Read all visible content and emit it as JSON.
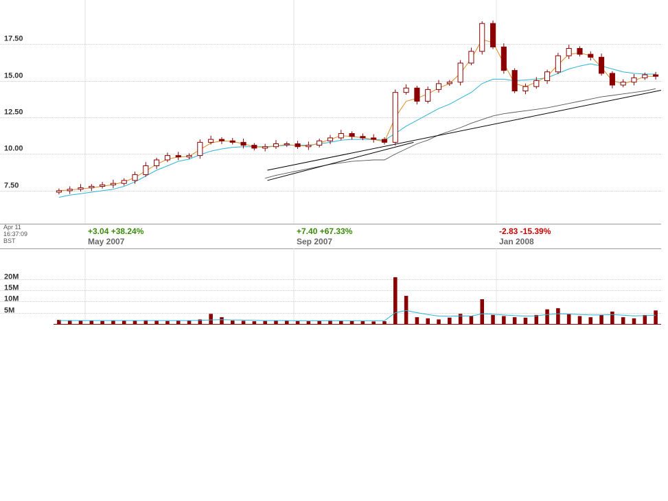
{
  "timestamp": {
    "date": "Apr 11",
    "time": "16:37:09",
    "zone": "BST"
  },
  "colors": {
    "candle": "#8b0000",
    "ma_short": "#e08a1e",
    "ma_long": "#2ab4d6",
    "ma_200": "#555555",
    "trendline": "#000000",
    "grid": "#999999",
    "positive": "#3a8a0a",
    "negative": "#cc0000"
  },
  "periods": [
    {
      "change": "+3.04 +38.24%",
      "label": "May 2007",
      "direction": "up"
    },
    {
      "change": "+7.40 +67.33%",
      "label": "Sep 2007",
      "direction": "up"
    },
    {
      "change": "-2.83 -15.39%",
      "label": "Jan 2008",
      "direction": "down"
    }
  ],
  "chart_data": [
    {
      "type": "line",
      "name": "price",
      "style": "candlestick with moving averages and trendlines",
      "x_period_labels": [
        "May 2007",
        "Sep 2007",
        "Jan 2008"
      ],
      "y_ticks": [
        "7.50",
        "10.00",
        "12.50",
        "15.00",
        "17.50"
      ],
      "ylim": [
        5.25,
        20.5
      ],
      "grid": true,
      "series": [
        {
          "role": "price",
          "values": [
            7.5,
            7.6,
            7.7,
            7.8,
            7.9,
            8.0,
            8.2,
            8.6,
            9.2,
            9.6,
            9.9,
            9.8,
            9.9,
            10.8,
            11.0,
            10.9,
            10.8,
            10.6,
            10.4,
            10.5,
            10.7,
            10.7,
            10.5,
            10.6,
            10.9,
            11.1,
            11.4,
            11.2,
            11.1,
            11.0,
            10.8,
            14.2,
            14.5,
            13.6,
            14.4,
            14.8,
            14.9,
            16.2,
            17.0,
            18.9,
            17.3,
            15.7,
            14.3,
            14.6,
            15.0,
            15.6,
            16.7,
            17.2,
            16.8,
            16.6,
            15.5,
            14.7,
            14.9,
            15.2,
            15.4,
            15.3
          ]
        },
        {
          "role": "ma_short",
          "values": [
            7.5,
            7.55,
            7.62,
            7.7,
            7.8,
            7.92,
            8.1,
            8.4,
            8.85,
            9.3,
            9.65,
            9.8,
            9.85,
            10.3,
            10.75,
            10.9,
            10.85,
            10.7,
            10.5,
            10.45,
            10.55,
            10.65,
            10.58,
            10.55,
            10.75,
            11.0,
            11.25,
            11.2,
            11.1,
            11.0,
            10.85,
            12.5,
            13.6,
            13.8,
            14.1,
            14.5,
            14.8,
            15.5,
            16.5,
            17.8,
            17.6,
            16.2,
            14.8,
            14.6,
            14.9,
            15.3,
            16.1,
            16.8,
            16.9,
            16.7,
            15.9,
            15.0,
            14.8,
            15.0,
            15.3,
            15.3
          ]
        },
        {
          "role": "ma_long",
          "values": [
            7.05,
            7.2,
            7.3,
            7.4,
            7.5,
            7.6,
            7.8,
            8.1,
            8.5,
            8.9,
            9.2,
            9.5,
            9.65,
            9.95,
            10.2,
            10.35,
            10.45,
            10.5,
            10.5,
            10.5,
            10.55,
            10.6,
            10.6,
            10.6,
            10.7,
            10.8,
            10.95,
            11.0,
            11.0,
            11.0,
            10.95,
            11.4,
            11.9,
            12.3,
            12.7,
            13.1,
            13.4,
            13.8,
            14.2,
            14.8,
            15.1,
            15.1,
            15.0,
            15.05,
            15.1,
            15.2,
            15.5,
            15.8,
            16.0,
            16.15,
            16.0,
            15.8,
            15.6,
            15.5,
            15.45,
            15.45
          ]
        },
        {
          "role": "ma_200",
          "values": [
            null,
            null,
            null,
            null,
            null,
            null,
            null,
            null,
            null,
            null,
            null,
            null,
            null,
            null,
            null,
            null,
            null,
            null,
            null,
            8.35,
            8.55,
            8.7,
            8.85,
            9.0,
            9.15,
            9.3,
            9.4,
            9.5,
            9.55,
            9.6,
            9.6,
            10.0,
            10.35,
            10.7,
            10.95,
            11.3,
            11.55,
            11.8,
            12.1,
            12.35,
            12.6,
            12.75,
            12.85,
            12.95,
            13.05,
            13.15,
            13.3,
            13.45,
            13.6,
            13.75,
            13.9,
            14.0,
            14.1,
            14.2,
            14.3,
            14.45
          ]
        }
      ],
      "trendlines": [
        {
          "from": [
            0.3519,
            8.9
          ],
          "to": [
            1.0,
            14.35
          ]
        },
        {
          "from": [
            0.3519,
            8.2
          ],
          "to": [
            0.5926,
            10.8
          ]
        }
      ]
    },
    {
      "type": "bar",
      "name": "volume",
      "y_ticks": [
        "5M",
        "10M",
        "15M",
        "20M"
      ],
      "ylim": [
        0,
        22
      ],
      "grid": true,
      "values": [
        1.8,
        1.6,
        1.4,
        1.5,
        1.3,
        1.6,
        1.4,
        1.5,
        1.7,
        1.5,
        1.3,
        1.4,
        1.6,
        2.0,
        4.5,
        3.0,
        1.5,
        1.4,
        1.2,
        1.3,
        1.4,
        1.5,
        1.3,
        1.2,
        1.4,
        1.6,
        1.5,
        1.3,
        1.2,
        1.1,
        1.2,
        20.8,
        12.5,
        3.0,
        2.5,
        2.0,
        2.8,
        4.5,
        3.5,
        11.0,
        4.0,
        3.5,
        3.0,
        2.8,
        4.0,
        6.5,
        7.0,
        4.5,
        3.5,
        3.0,
        4.0,
        5.5,
        3.0,
        2.5,
        4.0,
        6.0
      ],
      "average": [
        1.5,
        1.5,
        1.5,
        1.5,
        1.5,
        1.5,
        1.5,
        1.5,
        1.5,
        1.5,
        1.5,
        1.5,
        1.5,
        1.6,
        1.8,
        1.9,
        1.8,
        1.7,
        1.6,
        1.5,
        1.5,
        1.5,
        1.4,
        1.4,
        1.4,
        1.4,
        1.4,
        1.4,
        1.4,
        1.4,
        1.4,
        5.0,
        6.0,
        5.0,
        4.2,
        3.5,
        3.4,
        3.6,
        3.5,
        4.5,
        4.3,
        4.0,
        3.7,
        3.5,
        3.6,
        4.2,
        4.5,
        4.4,
        4.2,
        4.0,
        4.0,
        4.2,
        3.9,
        3.6,
        3.7,
        3.9
      ]
    }
  ]
}
